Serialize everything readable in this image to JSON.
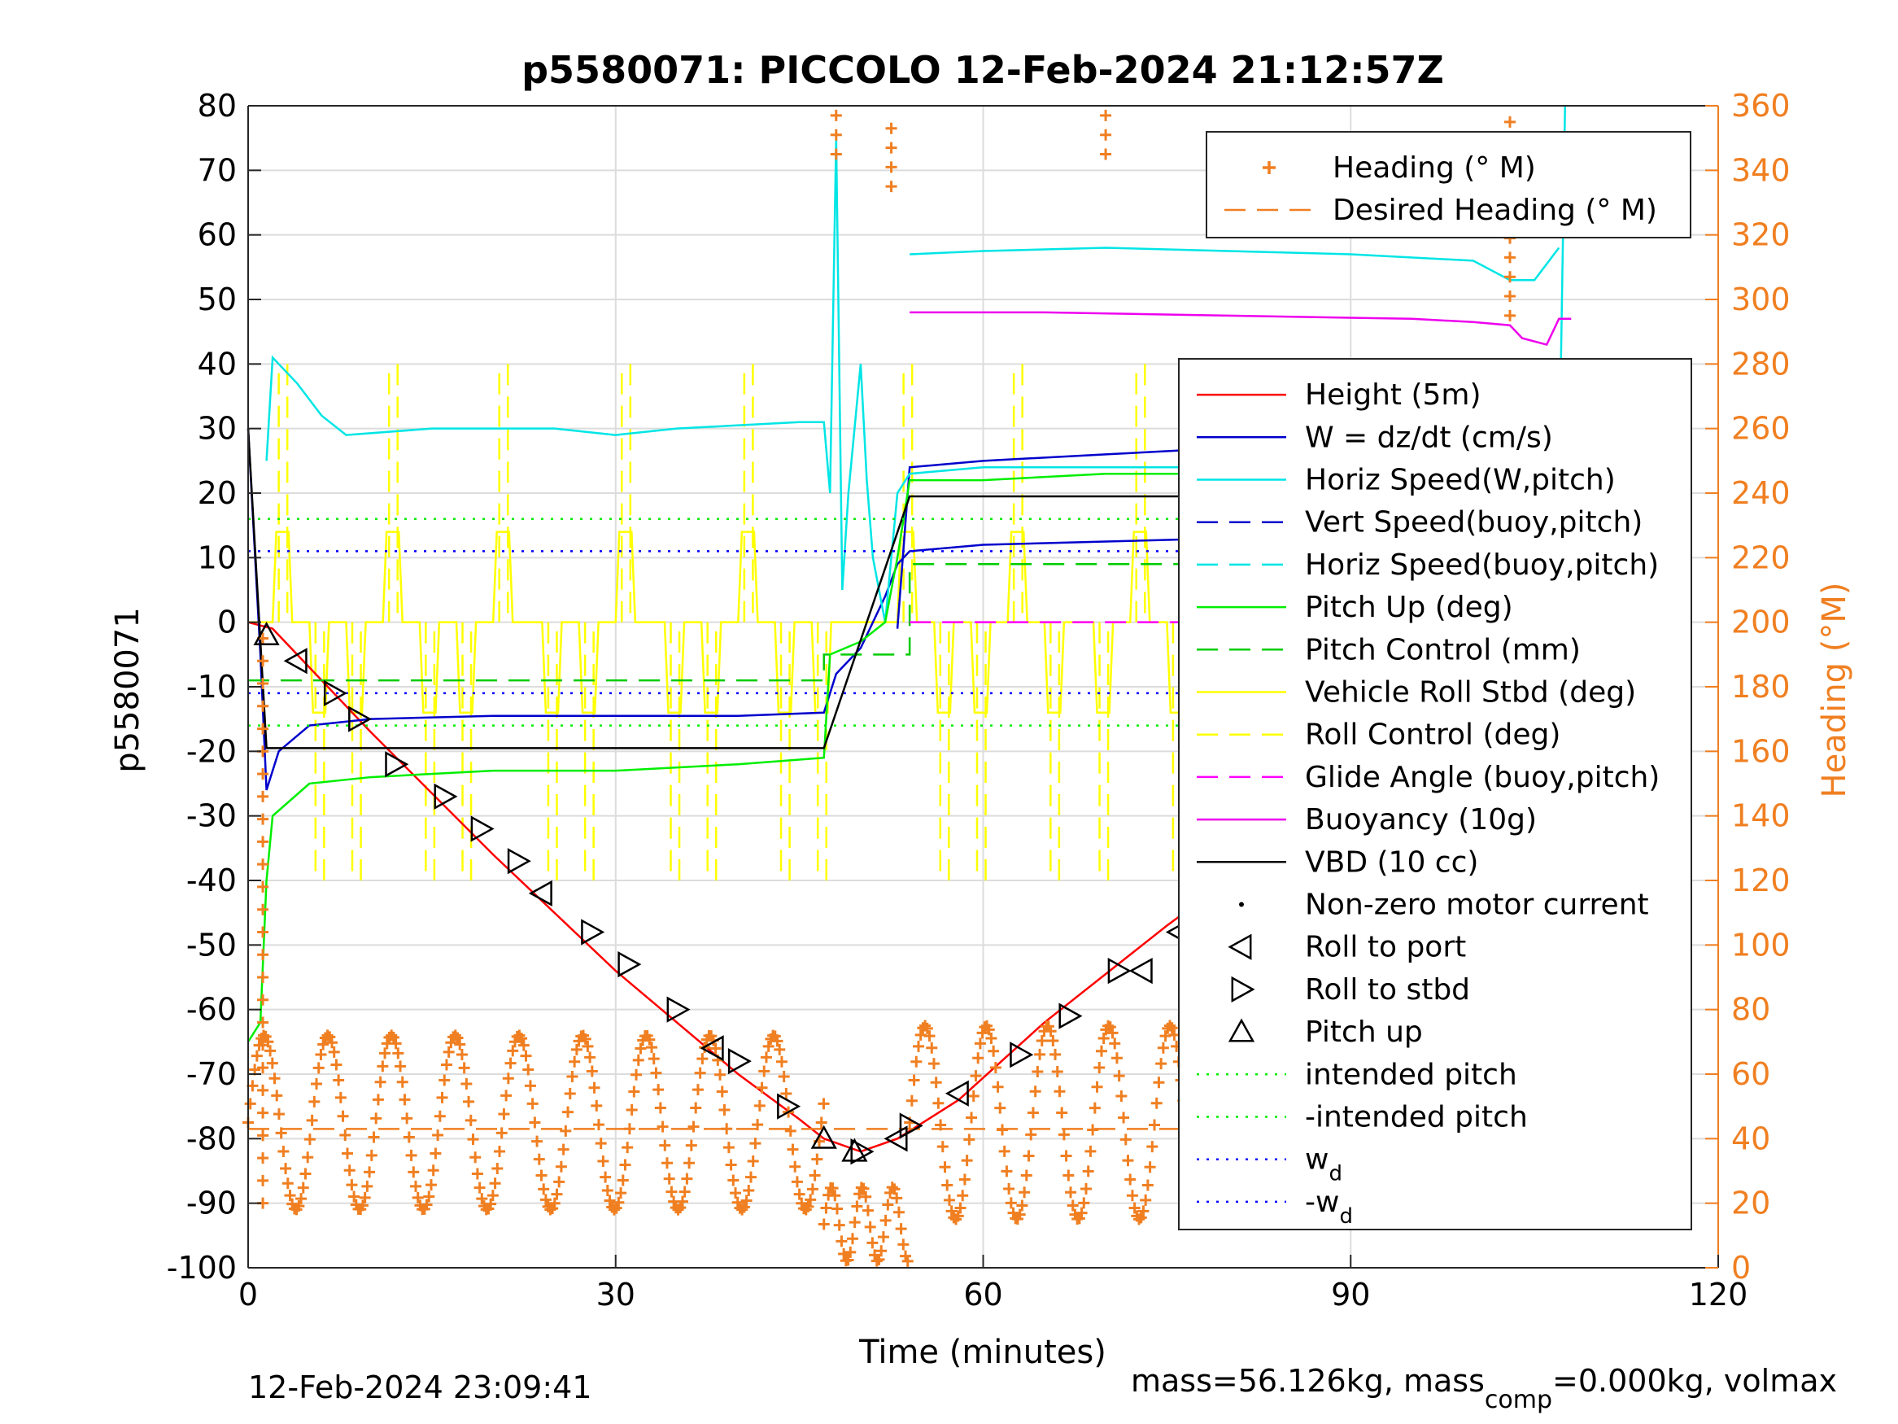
{
  "chart_data": {
    "type": "line",
    "title": "p5580071: PICCOLO 12-Feb-2024 21:12:57Z",
    "xlabel": "Time (minutes)",
    "ylabel": "p5580071",
    "y2label": "Heading (°M)",
    "xlim": [
      0,
      120
    ],
    "ylim": [
      -100,
      80
    ],
    "y2lim": [
      0,
      360
    ],
    "xticks": [
      "0",
      "30",
      "60",
      "90",
      "120"
    ],
    "yticks": [
      "80",
      "70",
      "60",
      "50",
      "40",
      "30",
      "20",
      "10",
      "0",
      "-10",
      "-20",
      "-30",
      "-40",
      "-50",
      "-60",
      "-70",
      "-80",
      "-90",
      "-100"
    ],
    "y2ticks": [
      "360",
      "340",
      "320",
      "300",
      "280",
      "260",
      "240",
      "220",
      "200",
      "180",
      "160",
      "140",
      "120",
      "100",
      "80",
      "60",
      "40",
      "20",
      "0"
    ],
    "grid": true,
    "colors": {
      "heading": "#f07f21",
      "height": "#ff0000",
      "w": "#0000cc",
      "horiz_speed": "#00e5e5",
      "pitch": "#00ee00",
      "roll": "#ffff00",
      "glide": "#ff00ff",
      "buoyancy": "#ee00ee",
      "vbd": "#000000",
      "wd": "#0000ff"
    },
    "legend_top": {
      "position": "top-right",
      "entries": [
        {
          "label": "Heading (° M)",
          "style": "plus",
          "color": "#f07f21"
        },
        {
          "label": "Desired Heading (° M)",
          "style": "dash",
          "color": "#f07f21"
        }
      ]
    },
    "legend_main": {
      "position": "right",
      "entries": [
        {
          "label": "Height (5m)",
          "style": "solid",
          "color": "#ff0000"
        },
        {
          "label": "W = dz/dt (cm/s)",
          "style": "solid",
          "color": "#0000cc"
        },
        {
          "label": "Horiz Speed(W,pitch)",
          "style": "solid",
          "color": "#00e5e5"
        },
        {
          "label": "Vert Speed(buoy,pitch)",
          "style": "dash",
          "color": "#0000cc"
        },
        {
          "label": "Horiz Speed(buoy,pitch)",
          "style": "dash",
          "color": "#00e5e5"
        },
        {
          "label": "Pitch Up (deg)",
          "style": "solid",
          "color": "#00ee00"
        },
        {
          "label": "Pitch Control (mm)",
          "style": "dash",
          "color": "#00cc00"
        },
        {
          "label": "Vehicle Roll Stbd (deg)",
          "style": "solid",
          "color": "#ffff00"
        },
        {
          "label": "Roll Control (deg)",
          "style": "dash",
          "color": "#ffff00"
        },
        {
          "label": "Glide Angle (buoy,pitch)",
          "style": "dash",
          "color": "#ff00ff"
        },
        {
          "label": "Buoyancy (10g)",
          "style": "solid",
          "color": "#ee00ee"
        },
        {
          "label": "VBD (10 cc)",
          "style": "solid",
          "color": "#000000"
        },
        {
          "label": "Non-zero motor current",
          "style": "dot",
          "color": "#000000"
        },
        {
          "label": "Roll to port",
          "style": "tri-left",
          "color": "#000000"
        },
        {
          "label": "Roll to stbd",
          "style": "tri-right",
          "color": "#000000"
        },
        {
          "label": "Pitch up",
          "style": "tri-up",
          "color": "#000000"
        },
        {
          "label": "intended pitch",
          "style": "dotted",
          "color": "#00ee00"
        },
        {
          "label": "-intended pitch",
          "style": "dotted",
          "color": "#00ee00"
        },
        {
          "label": "w",
          "sub": "d",
          "style": "dotted",
          "color": "#0000ff"
        },
        {
          "label": "-w",
          "sub": "d",
          "style": "dotted",
          "color": "#0000ff"
        }
      ]
    },
    "series": [
      {
        "name": "Height (5m)",
        "axis": "left",
        "style": "solid",
        "color": "#ff0000",
        "points": [
          [
            0,
            0
          ],
          [
            2,
            -1
          ],
          [
            10,
            -17
          ],
          [
            20,
            -36
          ],
          [
            30,
            -54
          ],
          [
            40,
            -70
          ],
          [
            45,
            -77
          ],
          [
            47,
            -80
          ],
          [
            50,
            -82
          ],
          [
            53,
            -80
          ],
          [
            58,
            -74
          ],
          [
            65,
            -62
          ],
          [
            75,
            -47
          ],
          [
            85,
            -33
          ],
          [
            95,
            -16
          ],
          [
            105,
            -4
          ],
          [
            108,
            0
          ]
        ]
      },
      {
        "name": "W = dz/dt (cm/s)",
        "axis": "left",
        "style": "solid",
        "color": "#0000cc",
        "points": [
          [
            0,
            30
          ],
          [
            1,
            -5
          ],
          [
            1.5,
            -26
          ],
          [
            2.5,
            -20
          ],
          [
            5,
            -16
          ],
          [
            10,
            -15
          ],
          [
            20,
            -14.5
          ],
          [
            30,
            -14.5
          ],
          [
            40,
            -14.5
          ],
          [
            47,
            -14
          ],
          [
            48,
            -8
          ],
          [
            50,
            -4
          ],
          [
            52,
            4
          ],
          [
            53,
            9
          ],
          [
            54,
            11
          ],
          [
            60,
            12
          ],
          [
            70,
            12.5
          ],
          [
            80,
            13
          ],
          [
            90,
            13
          ],
          [
            95,
            12
          ],
          [
            100,
            10
          ],
          [
            105,
            8
          ],
          [
            107,
            12
          ],
          [
            108,
            14
          ]
        ]
      },
      {
        "name": "W = dz/dt (cm/s) smooth",
        "axis": "left",
        "style": "solid",
        "color": "#0000cc",
        "points": [
          [
            53,
            -1
          ],
          [
            54,
            24
          ],
          [
            60,
            25
          ],
          [
            70,
            26
          ],
          [
            80,
            27
          ],
          [
            90,
            27
          ],
          [
            100,
            25
          ],
          [
            106,
            26
          ],
          [
            107,
            26
          ]
        ]
      },
      {
        "name": "Horiz Speed(W,pitch)",
        "axis": "left",
        "style": "solid",
        "color": "#00e5e5",
        "points": [
          [
            1.5,
            25
          ],
          [
            2,
            41
          ],
          [
            4,
            37
          ],
          [
            6,
            32
          ],
          [
            8,
            29
          ],
          [
            15,
            30
          ],
          [
            25,
            30
          ],
          [
            30,
            29
          ],
          [
            35,
            30
          ],
          [
            45,
            31
          ],
          [
            47,
            31
          ],
          [
            47.5,
            20
          ],
          [
            48,
            75
          ],
          [
            48.5,
            5
          ],
          [
            49,
            20
          ],
          [
            50,
            40
          ],
          [
            50.5,
            22
          ],
          [
            51,
            10
          ],
          [
            52,
            0
          ],
          [
            53,
            20
          ],
          [
            54,
            23
          ],
          [
            60,
            24
          ],
          [
            70,
            24
          ],
          [
            80,
            24
          ],
          [
            90,
            24
          ],
          [
            100,
            22
          ],
          [
            103,
            19
          ],
          [
            105,
            20
          ],
          [
            107,
            21
          ],
          [
            107.5,
            80
          ]
        ]
      },
      {
        "name": "Horiz Speed(W,pitch) upper",
        "axis": "left",
        "style": "solid",
        "color": "#00e5e5",
        "points": [
          [
            54,
            57
          ],
          [
            60,
            57.5
          ],
          [
            70,
            58
          ],
          [
            80,
            57.5
          ],
          [
            90,
            57
          ],
          [
            100,
            56
          ],
          [
            103,
            53
          ],
          [
            105,
            53
          ],
          [
            107,
            58
          ]
        ]
      },
      {
        "name": "Pitch Up (deg)",
        "axis": "left",
        "style": "solid",
        "color": "#00ee00",
        "points": [
          [
            0,
            -65
          ],
          [
            1,
            -62
          ],
          [
            1.5,
            -40
          ],
          [
            2,
            -30
          ],
          [
            5,
            -25
          ],
          [
            10,
            -24
          ],
          [
            20,
            -23
          ],
          [
            30,
            -23
          ],
          [
            40,
            -22
          ],
          [
            47,
            -21
          ],
          [
            47.5,
            -5
          ],
          [
            50,
            -3
          ],
          [
            52,
            0
          ],
          [
            53,
            10
          ],
          [
            54,
            22
          ],
          [
            60,
            22
          ],
          [
            70,
            23
          ],
          [
            80,
            23
          ],
          [
            90,
            23
          ],
          [
            100,
            22
          ],
          [
            105,
            21
          ],
          [
            108,
            20
          ]
        ]
      },
      {
        "name": "Pitch Control (mm)",
        "axis": "left",
        "style": "dash",
        "color": "#00cc00",
        "points": [
          [
            0,
            -9
          ],
          [
            47,
            -9
          ],
          [
            47,
            -5
          ],
          [
            54,
            -5
          ],
          [
            54,
            9
          ],
          [
            108,
            9
          ]
        ]
      },
      {
        "name": "Glide Angle (buoy,pitch)",
        "axis": "left",
        "style": "dash",
        "color": "#ff00ff",
        "points": [
          [
            54,
            0
          ],
          [
            107,
            0
          ]
        ]
      },
      {
        "name": "Buoyancy (10g)",
        "axis": "left",
        "style": "solid",
        "color": "#ee00ee",
        "points": [
          [
            54,
            48
          ],
          [
            65,
            48
          ],
          [
            80,
            47.5
          ],
          [
            95,
            47
          ],
          [
            100,
            46.5
          ],
          [
            103,
            46
          ],
          [
            104,
            44
          ],
          [
            106,
            43
          ],
          [
            107,
            47
          ],
          [
            108,
            47
          ]
        ]
      },
      {
        "name": "VBD (10 cc)",
        "axis": "left",
        "style": "solid",
        "color": "#000000",
        "points": [
          [
            0,
            30
          ],
          [
            1.5,
            -19.5
          ],
          [
            47,
            -19.5
          ],
          [
            54,
            19.5
          ],
          [
            108,
            19.5
          ]
        ]
      },
      {
        "name": "intended pitch",
        "axis": "left",
        "style": "dotted",
        "color": "#00ee00",
        "points": [
          [
            0,
            16
          ],
          [
            108,
            16
          ]
        ]
      },
      {
        "name": "-intended pitch",
        "axis": "left",
        "style": "dotted",
        "color": "#00ee00",
        "points": [
          [
            0,
            -16
          ],
          [
            108,
            -16
          ]
        ]
      },
      {
        "name": "w_d",
        "axis": "left",
        "style": "dotted",
        "color": "#0000ff",
        "points": [
          [
            0,
            11
          ],
          [
            108,
            11
          ]
        ]
      },
      {
        "name": "-w_d",
        "axis": "left",
        "style": "dotted",
        "color": "#0000ff",
        "points": [
          [
            0,
            -11
          ],
          [
            108,
            -11
          ]
        ]
      },
      {
        "name": "Desired Heading (° M)",
        "axis": "right",
        "style": "dash",
        "color": "#f07f21",
        "points": [
          [
            0,
            43
          ],
          [
            108,
            43
          ]
        ]
      }
    ],
    "roll_pulses": [
      2,
      5,
      8,
      11,
      14,
      17,
      20,
      24,
      27,
      30,
      34,
      37,
      40,
      43,
      46,
      53,
      56,
      59,
      62,
      65,
      69,
      72,
      75,
      78,
      82,
      85,
      89,
      92,
      95,
      98,
      102,
      105
    ],
    "heading_waves": {
      "axis": "right",
      "color": "#f07f21",
      "segments": [
        {
          "from": 0,
          "to": 47,
          "period": 5.2,
          "low": 18,
          "high": 72
        },
        {
          "from": 47,
          "to": 54,
          "period": 2.5,
          "low": 2,
          "high": 25
        },
        {
          "from": 54,
          "to": 108,
          "period": 5.0,
          "low": 15,
          "high": 75
        }
      ],
      "bursts": [
        [
          48,
          360,
          345
        ],
        [
          52.5,
          355,
          335
        ],
        [
          70,
          360,
          345
        ],
        [
          103,
          360,
          295
        ]
      ]
    },
    "markers": {
      "pitch_up": [
        [
          1.5,
          -2
        ],
        [
          107.5,
          0
        ],
        [
          47,
          -80
        ],
        [
          49.5,
          -82
        ]
      ],
      "roll_port": [
        [
          4,
          -6
        ],
        [
          24,
          -42
        ],
        [
          38,
          -66
        ],
        [
          53,
          -80
        ],
        [
          58,
          -73
        ],
        [
          73,
          -54
        ],
        [
          76,
          -48
        ],
        [
          93,
          -22
        ],
        [
          101,
          -6
        ]
      ],
      "roll_stbd": [
        [
          7,
          -11
        ],
        [
          9,
          -15
        ],
        [
          12,
          -22
        ],
        [
          16,
          -27
        ],
        [
          19,
          -32
        ],
        [
          22,
          -37
        ],
        [
          28,
          -48
        ],
        [
          31,
          -53
        ],
        [
          35,
          -60
        ],
        [
          40,
          -68
        ],
        [
          44,
          -75
        ],
        [
          50,
          -82
        ],
        [
          54,
          -78
        ],
        [
          63,
          -67
        ],
        [
          67,
          -61
        ],
        [
          71,
          -54
        ],
        [
          78,
          -44
        ],
        [
          81,
          -40
        ],
        [
          84,
          -34
        ],
        [
          89,
          -26
        ],
        [
          96,
          -15
        ],
        [
          98,
          -13
        ]
      ]
    }
  },
  "footer": {
    "left": "12-Feb-2024 23:09:41",
    "right_a": "mass=56.126kg, mass",
    "right_sub": "comp",
    "right_b": "=0.000kg, volmax"
  }
}
